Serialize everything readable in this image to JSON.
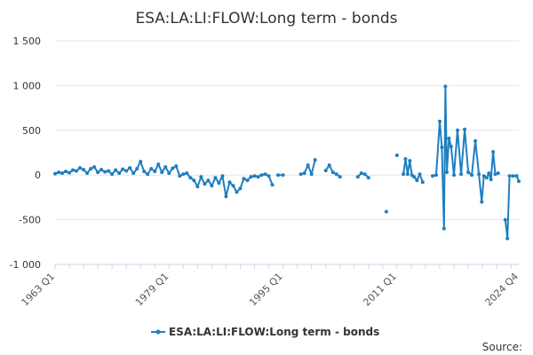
{
  "chart_data": {
    "type": "line",
    "title": "ESA:LA:LI:FLOW:Long term - bonds",
    "xlabel": "",
    "ylabel": "",
    "ylim": [
      -1000,
      1500
    ],
    "y_ticks": [
      -1000,
      -500,
      0,
      500,
      1000,
      1500
    ],
    "y_tick_labels": [
      "-1 000",
      "-500",
      "0",
      "500",
      "1 000",
      "1 500"
    ],
    "x_ticks": [
      "1963 Q1",
      "1979 Q1",
      "1995 Q1",
      "2011 Q1",
      "2024 Q4"
    ],
    "grid": true,
    "legend_position": "bottom",
    "credit": "Source:",
    "series": [
      {
        "name": "ESA:LA:LI:FLOW:Long term - bonds",
        "color": "#1f7fbf",
        "points": [
          [
            1963.0,
            15
          ],
          [
            1963.5,
            30
          ],
          [
            1964.0,
            20
          ],
          [
            1964.5,
            40
          ],
          [
            1965.0,
            25
          ],
          [
            1965.5,
            55
          ],
          [
            1966.0,
            45
          ],
          [
            1966.5,
            80
          ],
          [
            1967.0,
            60
          ],
          [
            1967.5,
            20
          ],
          [
            1968.0,
            70
          ],
          [
            1968.5,
            90
          ],
          [
            1969.0,
            30
          ],
          [
            1969.5,
            60
          ],
          [
            1970.0,
            35
          ],
          [
            1970.5,
            45
          ],
          [
            1971.0,
            10
          ],
          [
            1971.5,
            55
          ],
          [
            1972.0,
            20
          ],
          [
            1972.5,
            65
          ],
          [
            1973.0,
            45
          ],
          [
            1973.5,
            80
          ],
          [
            1974.0,
            20
          ],
          [
            1974.5,
            70
          ],
          [
            1975.0,
            150
          ],
          [
            1975.5,
            40
          ],
          [
            1976.0,
            10
          ],
          [
            1976.5,
            70
          ],
          [
            1977.0,
            40
          ],
          [
            1977.5,
            120
          ],
          [
            1978.0,
            30
          ],
          [
            1978.5,
            90
          ],
          [
            1979.0,
            20
          ],
          [
            1979.5,
            75
          ],
          [
            1980.0,
            100
          ],
          [
            1980.5,
            -10
          ],
          [
            1981.0,
            10
          ],
          [
            1981.5,
            20
          ],
          [
            1982.0,
            -30
          ],
          [
            1982.5,
            -60
          ],
          [
            1983.0,
            -130
          ],
          [
            1983.5,
            -20
          ],
          [
            1984.0,
            -100
          ],
          [
            1984.5,
            -60
          ],
          [
            1985.0,
            -120
          ],
          [
            1985.5,
            -30
          ],
          [
            1986.0,
            -90
          ],
          [
            1986.5,
            -10
          ],
          [
            1987.0,
            -240
          ],
          [
            1987.5,
            -80
          ],
          [
            1988.0,
            -120
          ],
          [
            1988.5,
            -190
          ],
          [
            1989.0,
            -150
          ],
          [
            1989.5,
            -40
          ],
          [
            1990.0,
            -60
          ],
          [
            1990.5,
            -20
          ],
          [
            1991.0,
            -10
          ],
          [
            1991.5,
            -20
          ],
          [
            1992.0,
            0
          ],
          [
            1992.5,
            10
          ],
          [
            1993.0,
            -10
          ],
          [
            1993.5,
            -110
          ],
          [
            1994.0,
            null
          ],
          [
            1994.3,
            0
          ],
          [
            1995.0,
            0
          ],
          [
            1996.0,
            null
          ],
          [
            1997.5,
            10
          ],
          [
            1998.0,
            20
          ],
          [
            1998.5,
            110
          ],
          [
            1999.0,
            10
          ],
          [
            1999.5,
            170
          ],
          [
            2000.0,
            null
          ],
          [
            2001.0,
            50
          ],
          [
            2001.5,
            110
          ],
          [
            2002.0,
            30
          ],
          [
            2002.5,
            10
          ],
          [
            2003.0,
            -20
          ],
          [
            2003.5,
            null
          ],
          [
            2005.5,
            -20
          ],
          [
            2006.0,
            20
          ],
          [
            2006.5,
            10
          ],
          [
            2007.0,
            -30
          ],
          [
            2007.5,
            null
          ],
          [
            2009.5,
            -410
          ],
          [
            2010.0,
            null
          ],
          [
            2011.0,
            220
          ],
          [
            2011.5,
            null
          ],
          [
            2011.9,
            10
          ],
          [
            2012.2,
            180
          ],
          [
            2012.5,
            10
          ],
          [
            2012.8,
            160
          ],
          [
            2013.1,
            0
          ],
          [
            2013.4,
            -20
          ],
          [
            2013.8,
            -60
          ],
          [
            2014.2,
            10
          ],
          [
            2014.6,
            -80
          ],
          [
            2015.0,
            null
          ],
          [
            2016.0,
            -10
          ],
          [
            2016.5,
            0
          ],
          [
            2017.0,
            600
          ],
          [
            2017.3,
            310
          ],
          [
            2017.6,
            -600
          ],
          [
            2017.8,
            990
          ],
          [
            2018.0,
            30
          ],
          [
            2018.3,
            410
          ],
          [
            2018.6,
            320
          ],
          [
            2019.0,
            0
          ],
          [
            2019.5,
            500
          ],
          [
            2020.0,
            10
          ],
          [
            2020.5,
            510
          ],
          [
            2021.0,
            30
          ],
          [
            2021.5,
            0
          ],
          [
            2022.0,
            380
          ],
          [
            2022.5,
            10
          ],
          [
            2022.9,
            -300
          ],
          [
            2023.2,
            -10
          ],
          [
            2023.6,
            -30
          ],
          [
            2023.9,
            20
          ],
          [
            2024.2,
            -50
          ],
          [
            2024.5,
            260
          ],
          [
            2024.8,
            10
          ],
          [
            2025.2,
            20
          ],
          [
            2025.5,
            null
          ],
          [
            2026.2,
            -500
          ],
          [
            2026.5,
            -710
          ],
          [
            2026.8,
            -10
          ],
          [
            2027.3,
            -10
          ],
          [
            2027.8,
            -10
          ],
          [
            2028.1,
            -70
          ]
        ]
      }
    ]
  }
}
